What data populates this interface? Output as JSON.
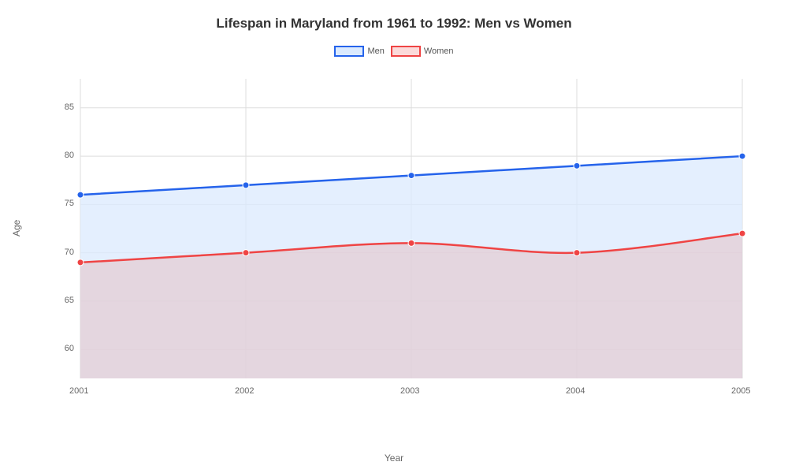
{
  "chart": {
    "type": "line-area",
    "title": "Lifespan in Maryland from 1961 to 1992: Men vs Women",
    "title_fontsize": 17,
    "title_color": "#333333",
    "background_color": "#ffffff",
    "plot_background": "#ffffff",
    "xlabel": "Year",
    "ylabel": "Age",
    "label_fontsize": 12,
    "label_color": "#666666",
    "tick_fontsize": 11,
    "tick_color": "#666666",
    "grid_color": "#dddddd",
    "grid_width": 1,
    "xlim": [
      2001,
      2005
    ],
    "ylim": [
      57,
      88
    ],
    "xticks": [
      2001,
      2002,
      2003,
      2004,
      2005
    ],
    "yticks": [
      60,
      65,
      70,
      75,
      80,
      85
    ],
    "x_categories": [
      "2001",
      "2002",
      "2003",
      "2004",
      "2005"
    ],
    "series": [
      {
        "name": "Men",
        "values": [
          76,
          77,
          78,
          79,
          80
        ],
        "line_color": "#2563eb",
        "line_width": 2.5,
        "marker_color": "#2563eb",
        "marker_size": 4,
        "fill_color": "#dbeafe",
        "fill_opacity": 0.75,
        "legend_fill": "#dbeafe",
        "legend_border": "#2563eb"
      },
      {
        "name": "Women",
        "values": [
          69,
          70,
          71,
          70,
          72
        ],
        "line_color": "#ef4444",
        "line_width": 2.5,
        "marker_color": "#ef4444",
        "marker_size": 4,
        "fill_color": "#e5c5c9",
        "fill_opacity": 0.6,
        "legend_fill": "#fbdada",
        "legend_border": "#ef4444"
      }
    ],
    "legend_position": "top-center"
  }
}
